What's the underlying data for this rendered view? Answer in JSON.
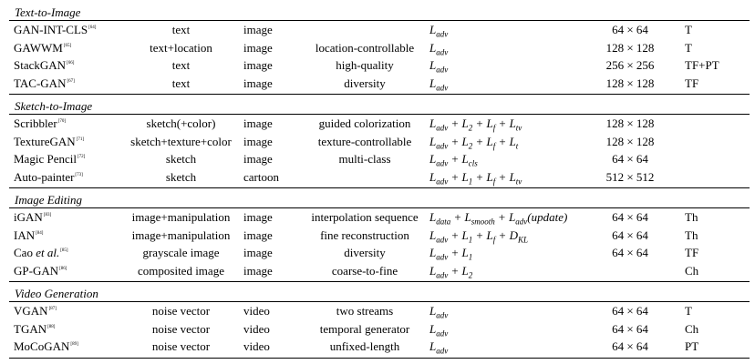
{
  "sections": [
    {
      "title": "Text-to-Image",
      "rows": [
        {
          "name": "GAN-INT-CLS",
          "ref": "[64]",
          "input": "text",
          "output": "image",
          "characteristic": "",
          "loss": "L_adv",
          "resolution": "64 × 64",
          "framework": "T"
        },
        {
          "name": "GAWWM",
          "ref": "[65]",
          "input": "text+location",
          "output": "image",
          "characteristic": "location-controllable",
          "loss": "L_adv",
          "resolution": "128 × 128",
          "framework": "T"
        },
        {
          "name": "StackGAN",
          "ref": "[66]",
          "input": "text",
          "output": "image",
          "characteristic": "high-quality",
          "loss": "L_adv",
          "resolution": "256 × 256",
          "framework": "TF+PT"
        },
        {
          "name": "TAC-GAN",
          "ref": "[67]",
          "input": "text",
          "output": "image",
          "characteristic": "diversity",
          "loss": "L_adv",
          "resolution": "128 × 128",
          "framework": "TF"
        }
      ]
    },
    {
      "title": "Sketch-to-Image",
      "rows": [
        {
          "name": "Scribbler",
          "ref": "[70]",
          "input": "sketch(+color)",
          "output": "image",
          "characteristic": "guided colorization",
          "loss": "L_adv + L_2 + L_f + L_tv",
          "resolution": "128 × 128",
          "framework": ""
        },
        {
          "name": "TextureGAN",
          "ref": "[71]",
          "input": "sketch+texture+color",
          "output": "image",
          "characteristic": "texture-controllable",
          "loss": "L_adv + L_2 + L_f + L_t",
          "resolution": "128 × 128",
          "framework": ""
        },
        {
          "name": "Magic Pencil",
          "ref": "[72]",
          "input": "sketch",
          "output": "image",
          "characteristic": "multi-class",
          "loss": "L_adv + L_cls",
          "resolution": "64 × 64",
          "framework": ""
        },
        {
          "name": "Auto-painter",
          "ref": "[73]",
          "input": "sketch",
          "output": "cartoon",
          "characteristic": "",
          "loss": "L_adv + L_1 + L_f + L_tv",
          "resolution": "512 × 512",
          "framework": ""
        }
      ]
    },
    {
      "title": "Image Editing",
      "rows": [
        {
          "name": "iGAN",
          "ref": "[83]",
          "input": "image+manipulation",
          "output": "image",
          "characteristic": "interpolation sequence",
          "loss": "L_data + L_smooth + L_adv(update)",
          "resolution": "64 × 64",
          "framework": "Th"
        },
        {
          "name": "IAN",
          "ref": "[84]",
          "input": "image+manipulation",
          "output": "image",
          "characteristic": "fine reconstruction",
          "loss": "L_adv + L_1 + L_f + D_KL",
          "resolution": "64 × 64",
          "framework": "Th"
        },
        {
          "name": "Cao et al.",
          "ref": "[85]",
          "input": "grayscale image",
          "output": "image",
          "characteristic": "diversity",
          "loss": "L_adv + L_1",
          "resolution": "64 × 64",
          "framework": "TF"
        },
        {
          "name": "GP-GAN",
          "ref": "[86]",
          "input": "composited image",
          "output": "image",
          "characteristic": "coarse-to-fine",
          "loss": "L_adv + L_2",
          "resolution": "",
          "framework": "Ch"
        }
      ]
    },
    {
      "title": "Video Generation",
      "rows": [
        {
          "name": "VGAN",
          "ref": "[87]",
          "input": "noise vector",
          "output": "video",
          "characteristic": "two streams",
          "loss": "L_adv",
          "resolution": "64 × 64",
          "framework": "T"
        },
        {
          "name": "TGAN",
          "ref": "[88]",
          "input": "noise vector",
          "output": "video",
          "characteristic": "temporal generator",
          "loss": "L_adv",
          "resolution": "64 × 64",
          "framework": "Ch"
        },
        {
          "name": "MoCoGAN",
          "ref": "[89]",
          "input": "noise vector",
          "output": "video",
          "characteristic": "unfixed-length",
          "loss": "L_adv",
          "resolution": "64 × 64",
          "framework": "PT"
        }
      ]
    }
  ]
}
